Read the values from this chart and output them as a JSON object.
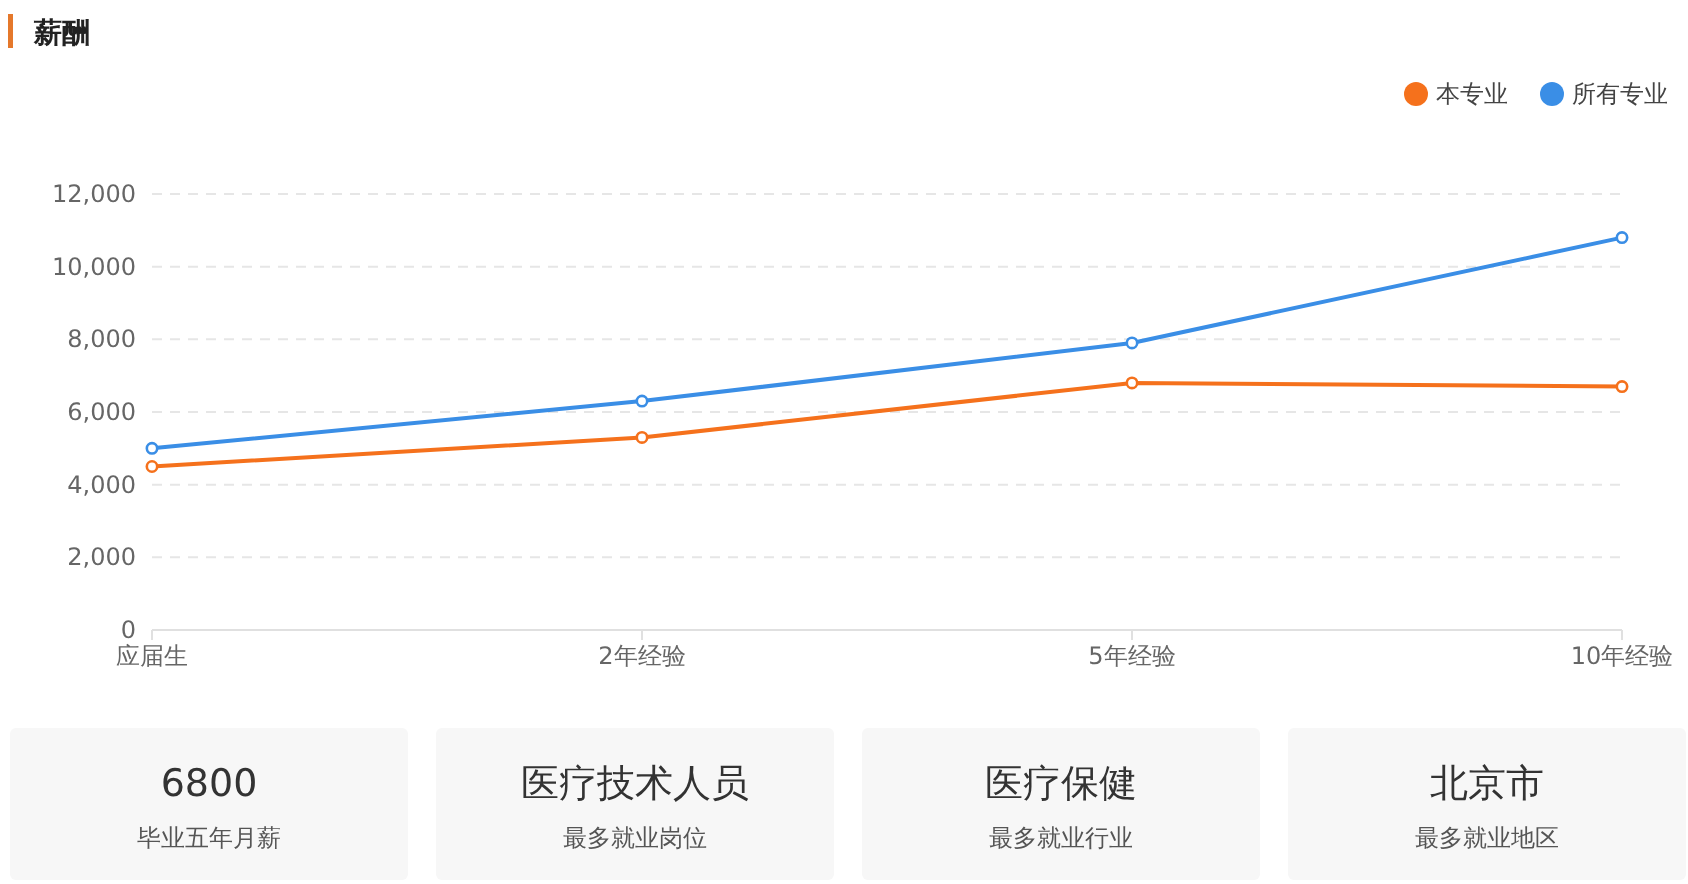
{
  "chart_data": [
    {
      "type": "line",
      "title": "薪酬",
      "categories": [
        "应届生",
        "2年经验",
        "5年经验",
        "10年经验"
      ],
      "series": [
        {
          "name": "本专业",
          "color": "#f5711c",
          "values": [
            4500,
            5300,
            6800,
            6700
          ]
        },
        {
          "name": "所有专业",
          "color": "#3a8ee6",
          "values": [
            5000,
            6300,
            7900,
            10800
          ]
        }
      ],
      "ylim": [
        0,
        12000
      ],
      "yticks": [
        0,
        {
          "value": 2000,
          "label": "2,000"
        },
        {
          "value": 4000,
          "label": "4,000"
        },
        {
          "value": 6000,
          "label": "6,000"
        },
        {
          "value": 8000,
          "label": "8,000"
        },
        {
          "value": 10000,
          "label": "10,000"
        },
        {
          "value": 12000,
          "label": "12,000"
        }
      ],
      "grid": "y",
      "legend": "top right",
      "marker": "circle"
    },
    {
      "type": "other",
      "title": "6800",
      "subtitle": "毕业五年月薪"
    },
    {
      "type": "other",
      "title": "医疗技术人员",
      "subtitle": "最多就业岗位"
    },
    {
      "type": "other",
      "title": "医疗保健",
      "subtitle": "最多就业行业"
    },
    {
      "type": "other",
      "title": "北京市",
      "subtitle": "最多就业地区"
    }
  ]
}
